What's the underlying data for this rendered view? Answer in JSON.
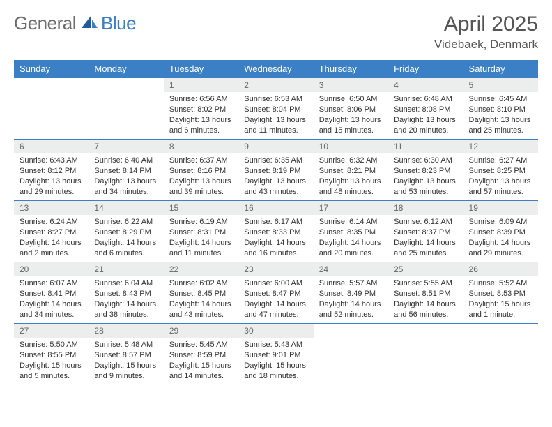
{
  "logo": {
    "part1": "General",
    "part2": "Blue"
  },
  "title": "April 2025",
  "location": "Videbaek, Denmark",
  "colors": {
    "header_bg": "#3b7fc4",
    "header_text": "#ffffff",
    "daynum_bg": "#eceded",
    "border": "#3b7fc4",
    "logo_gray": "#6b6b6b",
    "logo_blue": "#3b7fc4"
  },
  "weekdays": [
    "Sunday",
    "Monday",
    "Tuesday",
    "Wednesday",
    "Thursday",
    "Friday",
    "Saturday"
  ],
  "weeks": [
    [
      null,
      null,
      {
        "n": "1",
        "sr": "Sunrise: 6:56 AM",
        "ss": "Sunset: 8:02 PM",
        "dl": "Daylight: 13 hours and 6 minutes."
      },
      {
        "n": "2",
        "sr": "Sunrise: 6:53 AM",
        "ss": "Sunset: 8:04 PM",
        "dl": "Daylight: 13 hours and 11 minutes."
      },
      {
        "n": "3",
        "sr": "Sunrise: 6:50 AM",
        "ss": "Sunset: 8:06 PM",
        "dl": "Daylight: 13 hours and 15 minutes."
      },
      {
        "n": "4",
        "sr": "Sunrise: 6:48 AM",
        "ss": "Sunset: 8:08 PM",
        "dl": "Daylight: 13 hours and 20 minutes."
      },
      {
        "n": "5",
        "sr": "Sunrise: 6:45 AM",
        "ss": "Sunset: 8:10 PM",
        "dl": "Daylight: 13 hours and 25 minutes."
      }
    ],
    [
      {
        "n": "6",
        "sr": "Sunrise: 6:43 AM",
        "ss": "Sunset: 8:12 PM",
        "dl": "Daylight: 13 hours and 29 minutes."
      },
      {
        "n": "7",
        "sr": "Sunrise: 6:40 AM",
        "ss": "Sunset: 8:14 PM",
        "dl": "Daylight: 13 hours and 34 minutes."
      },
      {
        "n": "8",
        "sr": "Sunrise: 6:37 AM",
        "ss": "Sunset: 8:16 PM",
        "dl": "Daylight: 13 hours and 39 minutes."
      },
      {
        "n": "9",
        "sr": "Sunrise: 6:35 AM",
        "ss": "Sunset: 8:19 PM",
        "dl": "Daylight: 13 hours and 43 minutes."
      },
      {
        "n": "10",
        "sr": "Sunrise: 6:32 AM",
        "ss": "Sunset: 8:21 PM",
        "dl": "Daylight: 13 hours and 48 minutes."
      },
      {
        "n": "11",
        "sr": "Sunrise: 6:30 AM",
        "ss": "Sunset: 8:23 PM",
        "dl": "Daylight: 13 hours and 53 minutes."
      },
      {
        "n": "12",
        "sr": "Sunrise: 6:27 AM",
        "ss": "Sunset: 8:25 PM",
        "dl": "Daylight: 13 hours and 57 minutes."
      }
    ],
    [
      {
        "n": "13",
        "sr": "Sunrise: 6:24 AM",
        "ss": "Sunset: 8:27 PM",
        "dl": "Daylight: 14 hours and 2 minutes."
      },
      {
        "n": "14",
        "sr": "Sunrise: 6:22 AM",
        "ss": "Sunset: 8:29 PM",
        "dl": "Daylight: 14 hours and 6 minutes."
      },
      {
        "n": "15",
        "sr": "Sunrise: 6:19 AM",
        "ss": "Sunset: 8:31 PM",
        "dl": "Daylight: 14 hours and 11 minutes."
      },
      {
        "n": "16",
        "sr": "Sunrise: 6:17 AM",
        "ss": "Sunset: 8:33 PM",
        "dl": "Daylight: 14 hours and 16 minutes."
      },
      {
        "n": "17",
        "sr": "Sunrise: 6:14 AM",
        "ss": "Sunset: 8:35 PM",
        "dl": "Daylight: 14 hours and 20 minutes."
      },
      {
        "n": "18",
        "sr": "Sunrise: 6:12 AM",
        "ss": "Sunset: 8:37 PM",
        "dl": "Daylight: 14 hours and 25 minutes."
      },
      {
        "n": "19",
        "sr": "Sunrise: 6:09 AM",
        "ss": "Sunset: 8:39 PM",
        "dl": "Daylight: 14 hours and 29 minutes."
      }
    ],
    [
      {
        "n": "20",
        "sr": "Sunrise: 6:07 AM",
        "ss": "Sunset: 8:41 PM",
        "dl": "Daylight: 14 hours and 34 minutes."
      },
      {
        "n": "21",
        "sr": "Sunrise: 6:04 AM",
        "ss": "Sunset: 8:43 PM",
        "dl": "Daylight: 14 hours and 38 minutes."
      },
      {
        "n": "22",
        "sr": "Sunrise: 6:02 AM",
        "ss": "Sunset: 8:45 PM",
        "dl": "Daylight: 14 hours and 43 minutes."
      },
      {
        "n": "23",
        "sr": "Sunrise: 6:00 AM",
        "ss": "Sunset: 8:47 PM",
        "dl": "Daylight: 14 hours and 47 minutes."
      },
      {
        "n": "24",
        "sr": "Sunrise: 5:57 AM",
        "ss": "Sunset: 8:49 PM",
        "dl": "Daylight: 14 hours and 52 minutes."
      },
      {
        "n": "25",
        "sr": "Sunrise: 5:55 AM",
        "ss": "Sunset: 8:51 PM",
        "dl": "Daylight: 14 hours and 56 minutes."
      },
      {
        "n": "26",
        "sr": "Sunrise: 5:52 AM",
        "ss": "Sunset: 8:53 PM",
        "dl": "Daylight: 15 hours and 1 minute."
      }
    ],
    [
      {
        "n": "27",
        "sr": "Sunrise: 5:50 AM",
        "ss": "Sunset: 8:55 PM",
        "dl": "Daylight: 15 hours and 5 minutes."
      },
      {
        "n": "28",
        "sr": "Sunrise: 5:48 AM",
        "ss": "Sunset: 8:57 PM",
        "dl": "Daylight: 15 hours and 9 minutes."
      },
      {
        "n": "29",
        "sr": "Sunrise: 5:45 AM",
        "ss": "Sunset: 8:59 PM",
        "dl": "Daylight: 15 hours and 14 minutes."
      },
      {
        "n": "30",
        "sr": "Sunrise: 5:43 AM",
        "ss": "Sunset: 9:01 PM",
        "dl": "Daylight: 15 hours and 18 minutes."
      },
      null,
      null,
      null
    ]
  ]
}
